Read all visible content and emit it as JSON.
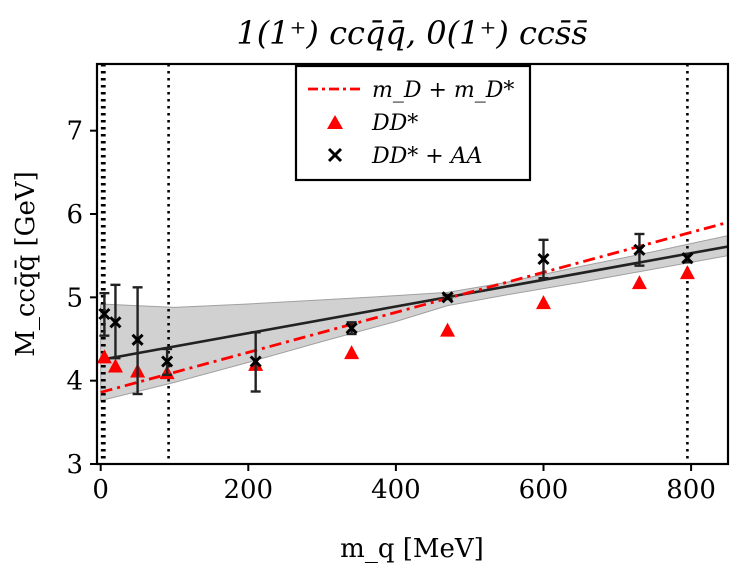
{
  "chart_data": {
    "type": "scatter",
    "title": "1(1⁺) ccq̄q̄, 0(1⁺) ccs̄s̄",
    "xlabel": "m_q [MeV]",
    "ylabel": "M_ccq̄q̄ [GeV]",
    "xlim": [
      -5,
      850
    ],
    "ylim": [
      3,
      7.8
    ],
    "xticks": [
      0,
      200,
      400,
      600,
      800
    ],
    "xtick_labels": [
      "0",
      "200",
      "400",
      "600",
      "800"
    ],
    "yticks": [
      3,
      4,
      5,
      6,
      7
    ],
    "ytick_labels": [
      "3",
      "4",
      "5",
      "6",
      "7"
    ],
    "vertical_lines": [
      2,
      5,
      92,
      795
    ],
    "legend": {
      "position": "upper-center",
      "entries": [
        {
          "label": "m_D + m_D*",
          "style": "dash-dot",
          "color": "#ff0000"
        },
        {
          "label": "DD*",
          "style": "triangle",
          "color": "#ff0000"
        },
        {
          "label": "DD* + AA",
          "style": "x",
          "color": "#000000"
        }
      ]
    },
    "series": [
      {
        "name": "m_D + m_D*",
        "type": "line",
        "style": "dash-dot",
        "color": "#ff0000",
        "x": [
          0,
          850
        ],
        "y": [
          3.86,
          5.9
        ]
      },
      {
        "name": "fit",
        "type": "line",
        "style": "solid",
        "color": "#222222",
        "x": [
          0,
          850
        ],
        "y": [
          4.25,
          5.61
        ]
      },
      {
        "name": "fit band",
        "type": "area",
        "color": "#999999",
        "x": [
          0,
          100,
          200,
          300,
          400,
          470,
          550,
          650,
          750,
          850
        ],
        "upper": [
          4.92,
          4.88,
          4.92,
          4.97,
          5.02,
          5.06,
          5.18,
          5.37,
          5.55,
          5.74
        ],
        "lower": [
          3.76,
          3.98,
          4.22,
          4.47,
          4.71,
          4.9,
          5.03,
          5.18,
          5.34,
          5.5
        ]
      },
      {
        "name": "DD*",
        "type": "scatter",
        "marker": "triangle",
        "color": "#ff0000",
        "x": [
          5,
          20,
          50,
          90,
          210,
          340,
          470,
          600,
          730,
          795
        ],
        "y": [
          4.28,
          4.17,
          4.11,
          4.09,
          4.19,
          4.33,
          4.6,
          4.93,
          5.17,
          5.29
        ]
      },
      {
        "name": "DD* + AA",
        "type": "scatter",
        "marker": "x",
        "color": "#000000",
        "x": [
          5,
          20,
          50,
          90,
          210,
          340,
          470,
          600,
          730,
          795
        ],
        "y": [
          4.8,
          4.7,
          4.49,
          4.23,
          4.23,
          4.63,
          5.0,
          5.46,
          5.57,
          5.47
        ],
        "yerr_low": [
          4.54,
          4.27,
          3.84,
          4.07,
          3.87,
          4.56,
          4.98,
          5.23,
          5.38,
          5.42
        ],
        "yerr_high": [
          5.05,
          5.15,
          5.12,
          4.38,
          4.58,
          4.7,
          5.03,
          5.69,
          5.76,
          5.52
        ]
      }
    ]
  }
}
